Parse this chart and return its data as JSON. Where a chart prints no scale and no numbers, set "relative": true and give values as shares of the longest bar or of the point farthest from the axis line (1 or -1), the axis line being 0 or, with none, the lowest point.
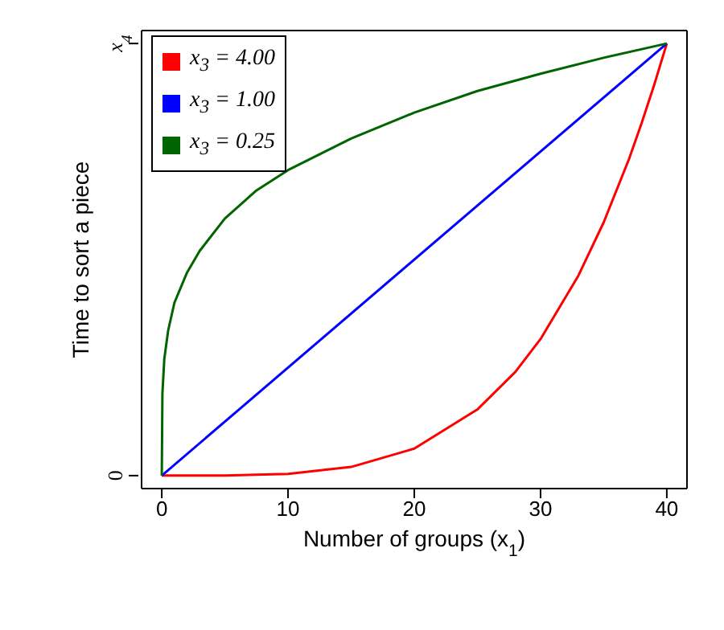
{
  "chart_data": {
    "type": "line",
    "xlabel": "Number of groups (x$_{1}$)",
    "ylabel": "Time to sort a piece",
    "xlim": [
      -1.6,
      41.6
    ],
    "xticks": [
      0,
      10,
      20,
      30,
      40
    ],
    "relative": true,
    "annotations": [
      "0",
      "x$_{4}$"
    ],
    "legend": "top left",
    "marker": "none",
    "line_style": "solid",
    "series": [
      {
        "name": "x$_{3}$ = 4.00",
        "color": "#ff0000",
        "x": [
          0,
          5,
          10,
          15,
          20,
          25,
          28,
          30,
          33,
          35,
          37,
          38,
          39,
          40
        ],
        "values": [
          0,
          0.0002,
          0.004,
          0.02,
          0.0625,
          0.153,
          0.24,
          0.316,
          0.463,
          0.586,
          0.732,
          0.815,
          0.904,
          1
        ]
      },
      {
        "name": "x$_{3}$ = 1.00",
        "color": "#0000ff",
        "x": [
          0,
          40
        ],
        "values": [
          0,
          1
        ]
      },
      {
        "name": "x$_{3}$ = 0.25",
        "color": "#006400",
        "x": [
          0,
          0.05,
          0.2,
          0.5,
          1,
          2,
          3,
          5,
          7.5,
          10,
          15,
          20,
          25,
          30,
          35,
          40
        ],
        "values": [
          0,
          0.19,
          0.27,
          0.335,
          0.4,
          0.47,
          0.52,
          0.595,
          0.66,
          0.707,
          0.78,
          0.84,
          0.89,
          0.93,
          0.967,
          1
        ]
      }
    ]
  }
}
